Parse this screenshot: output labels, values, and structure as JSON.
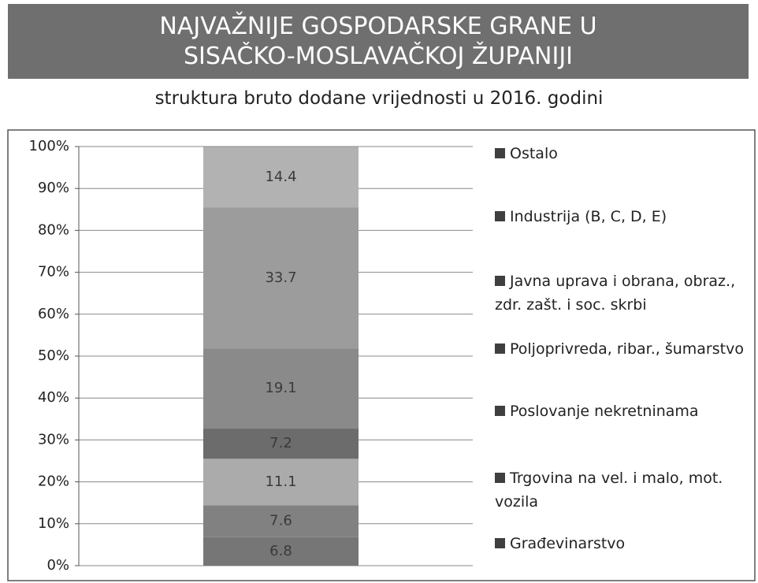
{
  "chart_data": {
    "type": "stacked_bar",
    "title": "NAJVAŽNIJE GOSPODARSKE GRANE U SISAČKO-MOSLAVAČKOJ ŽUPANIJI",
    "subtitle": "struktura bruto dodane vrijednosti u 2016. godini",
    "categories": [
      null
    ],
    "series": [
      {
        "name": "Građevinarstvo",
        "color": "#767676",
        "values": [
          6.8
        ]
      },
      {
        "name": "Trgovina na vel. i malo, mot. vozila",
        "color": "#818181",
        "values": [
          7.6
        ]
      },
      {
        "name": "Poslovanje nekretninama",
        "color": "#ababab",
        "values": [
          11.1
        ]
      },
      {
        "name": "Poljoprivreda, ribar., šumarstvo",
        "color": "#6c6c6c",
        "values": [
          7.2
        ]
      },
      {
        "name": "Javna uprava i obrana, obraz.,  zdr. zašt. i soc. skrbi",
        "color": "#8a8a8a",
        "values": [
          19.1
        ]
      },
      {
        "name": "Industrija (B, C, D, E)",
        "color": "#9c9c9c",
        "values": [
          33.7
        ]
      },
      {
        "name": "Ostalo",
        "color": "#b2b2b2",
        "values": [
          14.4
        ]
      }
    ],
    "ylim": [
      0,
      100
    ],
    "yticks": [
      {
        "value": 0,
        "label": "0%"
      },
      {
        "value": 10,
        "label": "10%"
      },
      {
        "value": 20,
        "label": "20%"
      },
      {
        "value": 30,
        "label": "30%"
      },
      {
        "value": 40,
        "label": "40%"
      },
      {
        "value": 50,
        "label": "50%"
      },
      {
        "value": 60,
        "label": "60%"
      },
      {
        "value": 70,
        "label": "70%"
      },
      {
        "value": 80,
        "label": "80%"
      },
      {
        "value": 90,
        "label": "90%"
      },
      {
        "value": 100,
        "label": "100%"
      }
    ],
    "grid": true,
    "legend": "right"
  }
}
